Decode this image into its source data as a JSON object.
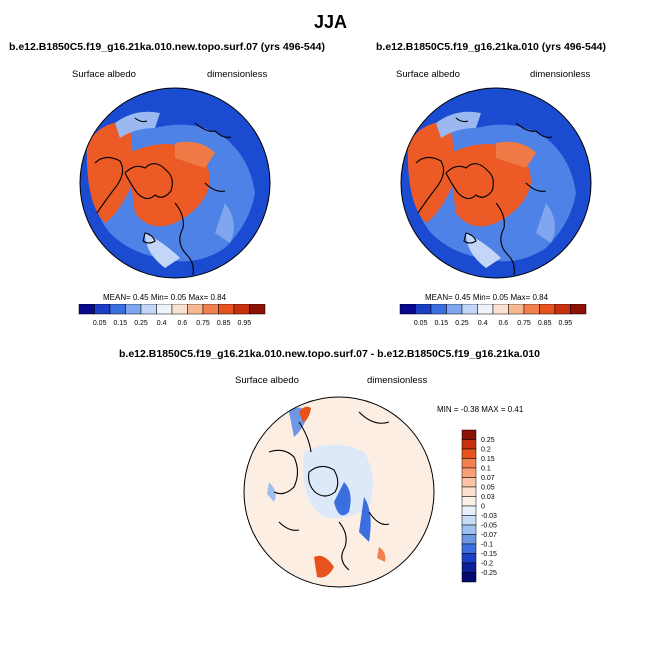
{
  "title": "JJA",
  "panels": {
    "left": {
      "title": "b.e12.B1850C5.f19_g16.21ka.010.new.topo.surf.07 (yrs 496-544)",
      "variable": "Surface albedo",
      "units": "dimensionless",
      "stats": {
        "mean_label": "MEAN=",
        "mean": "0.45",
        "min_label": "Min=",
        "min": "0.05",
        "max_label": "Max=",
        "max": "0.84"
      }
    },
    "right": {
      "title": "b.e12.B1850C5.f19_g16.21ka.010 (yrs 496-544)",
      "variable": "Surface albedo",
      "units": "dimensionless",
      "stats": {
        "mean_label": "MEAN=",
        "mean": "0.45",
        "min_label": "Min=",
        "min": "0.05",
        "max_label": "Max=",
        "max": "0.84"
      }
    },
    "diff": {
      "title": "b.e12.B1850C5.f19_g16.21ka.010.new.topo.surf.07 - b.e12.B1850C5.f19_g16.21ka.010",
      "variable": "Surface albedo",
      "units": "dimensionless",
      "min_label": "MIN =",
      "min": "-0.38",
      "max_label": "MAX =",
      "max": "0.41"
    }
  },
  "colorbar_abs": {
    "labels": [
      "0.05",
      "0.15",
      "0.25",
      "0.4",
      "0.6",
      "0.75",
      "0.85",
      "0.95"
    ],
    "colors": [
      "#08088c",
      "#1a3fc6",
      "#3b6fe0",
      "#7fa6ef",
      "#c3d6f7",
      "#eef3fb",
      "#fbe1cf",
      "#f8b893",
      "#f3814f",
      "#e8521d",
      "#c9300e",
      "#8c1206"
    ]
  },
  "colorbar_diff": {
    "labels": [
      "0.25",
      "0.2",
      "0.15",
      "0.1",
      "0.07",
      "0.05",
      "0.03",
      "0",
      "-0.03",
      "-0.05",
      "-0.07",
      "-0.1",
      "-0.15",
      "-0.2",
      "-0.25"
    ],
    "colors": [
      "#8c1206",
      "#c9300e",
      "#e8521d",
      "#f3814f",
      "#f8a07a",
      "#fbc2a3",
      "#fde0cf",
      "#fdf1e6",
      "#e6f0fb",
      "#c9dcf5",
      "#9fbfee",
      "#6f98e4",
      "#3b6fe0",
      "#1a3fc6",
      "#0a1f9a",
      "#050a70"
    ]
  }
}
